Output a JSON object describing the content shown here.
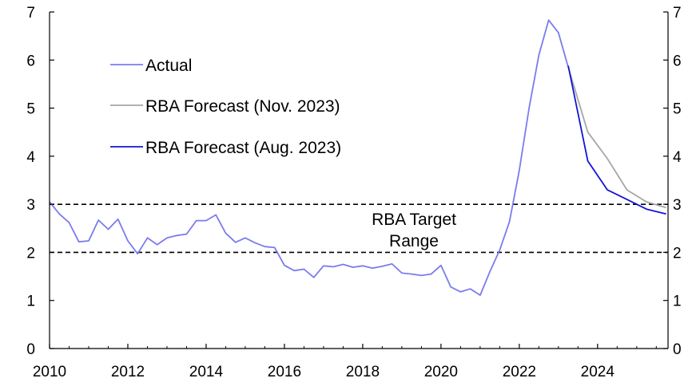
{
  "chart_data": {
    "type": "line",
    "title": "",
    "xlabel": "",
    "ylabel": "",
    "xlim": [
      2010,
      2025.8
    ],
    "ylim": [
      0,
      7
    ],
    "x_ticks": [
      "2010",
      "2012",
      "2014",
      "2016",
      "2018",
      "2020",
      "2022",
      "2024"
    ],
    "y_ticks": [
      "0",
      "1",
      "2",
      "3",
      "4",
      "5",
      "6",
      "7"
    ],
    "legend": {
      "placement": "top-left"
    },
    "target_band": {
      "lower": 2,
      "upper": 3,
      "label_line1": "RBA Target",
      "label_line2": "Range"
    },
    "series": [
      {
        "name": "Actual",
        "color": "#7b7bef",
        "points": [
          [
            2010.0,
            3.05
          ],
          [
            2010.25,
            2.8
          ],
          [
            2010.5,
            2.62
          ],
          [
            2010.75,
            2.22
          ],
          [
            2011.0,
            2.24
          ],
          [
            2011.25,
            2.67
          ],
          [
            2011.5,
            2.48
          ],
          [
            2011.75,
            2.69
          ],
          [
            2012.0,
            2.24
          ],
          [
            2012.25,
            1.97
          ],
          [
            2012.5,
            2.3
          ],
          [
            2012.75,
            2.16
          ],
          [
            2013.0,
            2.3
          ],
          [
            2013.25,
            2.35
          ],
          [
            2013.5,
            2.38
          ],
          [
            2013.75,
            2.66
          ],
          [
            2014.0,
            2.66
          ],
          [
            2014.25,
            2.78
          ],
          [
            2014.5,
            2.4
          ],
          [
            2014.75,
            2.21
          ],
          [
            2015.0,
            2.3
          ],
          [
            2015.25,
            2.2
          ],
          [
            2015.5,
            2.12
          ],
          [
            2015.75,
            2.1
          ],
          [
            2016.0,
            1.73
          ],
          [
            2016.25,
            1.62
          ],
          [
            2016.5,
            1.65
          ],
          [
            2016.75,
            1.48
          ],
          [
            2017.0,
            1.72
          ],
          [
            2017.25,
            1.7
          ],
          [
            2017.5,
            1.75
          ],
          [
            2017.75,
            1.69
          ],
          [
            2018.0,
            1.72
          ],
          [
            2018.25,
            1.67
          ],
          [
            2018.5,
            1.71
          ],
          [
            2018.75,
            1.76
          ],
          [
            2019.0,
            1.57
          ],
          [
            2019.25,
            1.55
          ],
          [
            2019.5,
            1.52
          ],
          [
            2019.75,
            1.55
          ],
          [
            2020.0,
            1.73
          ],
          [
            2020.25,
            1.28
          ],
          [
            2020.5,
            1.18
          ],
          [
            2020.75,
            1.24
          ],
          [
            2021.0,
            1.11
          ],
          [
            2021.25,
            1.6
          ],
          [
            2021.5,
            2.05
          ],
          [
            2021.75,
            2.64
          ],
          [
            2022.0,
            3.7
          ],
          [
            2022.25,
            5.0
          ],
          [
            2022.5,
            6.1
          ],
          [
            2022.75,
            6.83
          ],
          [
            2023.0,
            6.57
          ],
          [
            2023.25,
            5.85
          ]
        ]
      },
      {
        "name": "RBA Forecast (Nov. 2023)",
        "color": "#a6a6a6",
        "points": [
          [
            2023.25,
            5.85
          ],
          [
            2023.75,
            4.5
          ],
          [
            2024.25,
            3.95
          ],
          [
            2024.75,
            3.3
          ],
          [
            2025.25,
            3.05
          ],
          [
            2025.75,
            2.93
          ]
        ]
      },
      {
        "name": "RBA Forecast (Aug. 2023)",
        "color": "#1414d4",
        "points": [
          [
            2023.25,
            5.88
          ],
          [
            2023.75,
            3.9
          ],
          [
            2024.25,
            3.3
          ],
          [
            2024.75,
            3.1
          ],
          [
            2025.25,
            2.9
          ],
          [
            2025.75,
            2.8
          ]
        ]
      }
    ]
  }
}
